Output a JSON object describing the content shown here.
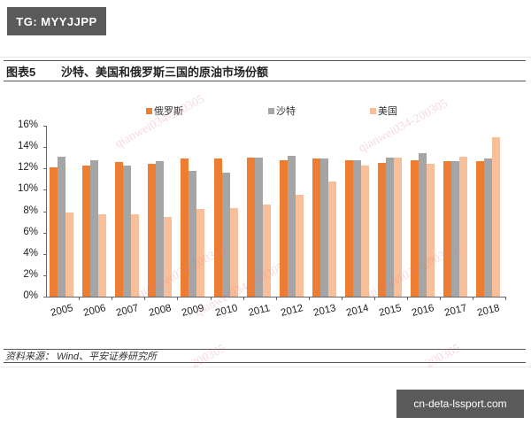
{
  "badges": {
    "top_left": "TG: MYYJJPP",
    "bottom_right": "cn-deta-lssport.com"
  },
  "figure": {
    "number": "图表5",
    "title": "沙特、美国和俄罗斯三国的原油市场份额",
    "source": "资料来源： Wind、平安证券研究所"
  },
  "watermarks": [
    "qianwei034-200305",
    "qianwei034-200305",
    "qianwei034-200305",
    "qianwei034-200305",
    "qianwei034-200305",
    "200305",
    "200305"
  ],
  "colors": {
    "russia": "#ed7d31",
    "saudi": "#a5a5a5",
    "usa": "#f8c09a"
  },
  "chart_data": {
    "type": "bar",
    "title": "沙特、美国和俄罗斯三国的原油市场份额",
    "xlabel": "",
    "ylabel": "",
    "ylim": [
      0,
      16
    ],
    "yticks": [
      "0%",
      "2%",
      "4%",
      "6%",
      "8%",
      "10%",
      "12%",
      "14%",
      "16%"
    ],
    "grid": false,
    "legend_position": "top",
    "categories": [
      "2005",
      "2006",
      "2007",
      "2008",
      "2009",
      "2010",
      "2011",
      "2012",
      "2013",
      "2014",
      "2015",
      "2016",
      "2017",
      "2018"
    ],
    "series": [
      {
        "name": "俄罗斯",
        "color": "#ed7d31",
        "values": [
          12.1,
          12.3,
          12.6,
          12.4,
          12.9,
          12.9,
          13.0,
          12.8,
          12.9,
          12.8,
          12.5,
          12.8,
          12.7,
          12.7
        ]
      },
      {
        "name": "沙特",
        "color": "#a5a5a5",
        "values": [
          13.1,
          12.8,
          12.3,
          12.7,
          11.8,
          11.6,
          13.0,
          13.2,
          12.9,
          12.8,
          13.0,
          13.4,
          12.7,
          12.9
        ]
      },
      {
        "name": "美国",
        "color": "#f8c09a",
        "values": [
          7.9,
          7.7,
          7.7,
          7.5,
          8.2,
          8.3,
          8.6,
          9.5,
          10.8,
          12.3,
          13.0,
          12.4,
          13.1,
          14.9
        ]
      }
    ]
  }
}
